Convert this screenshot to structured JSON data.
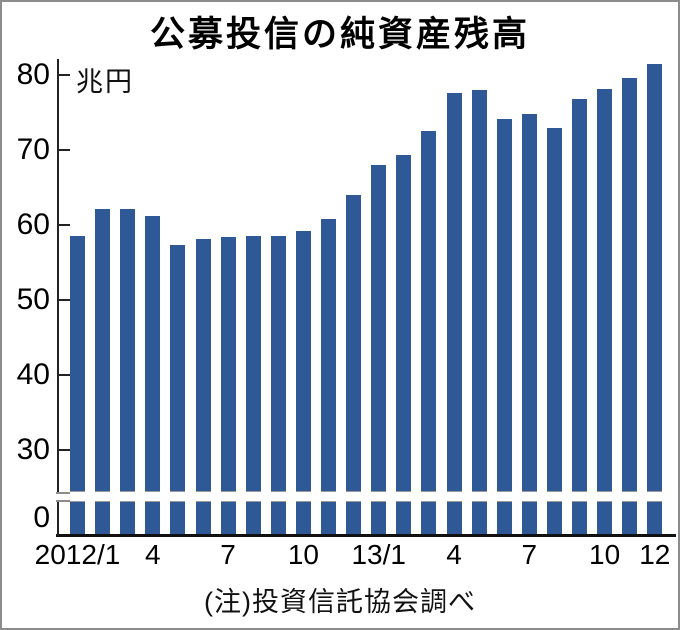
{
  "page": {
    "title": "公募投信の純資産残高",
    "note": "(注)投資信託協会調べ"
  },
  "chart_data": {
    "type": "bar",
    "title": "公募投信の純資産残高",
    "ylabel": "兆円",
    "unit_label": "兆円",
    "note": "(注)投資信託協会調べ",
    "categories": [
      "2012/1",
      "2012/2",
      "2012/3",
      "2012/4",
      "2012/5",
      "2012/6",
      "2012/7",
      "2012/8",
      "2012/9",
      "2012/10",
      "2012/11",
      "2012/12",
      "2013/1",
      "2013/2",
      "2013/3",
      "2013/4",
      "2013/5",
      "2013/6",
      "2013/7",
      "2013/8",
      "2013/9",
      "2013/10",
      "2013/11",
      "2013/12"
    ],
    "values": [
      58.6,
      62.2,
      62.1,
      61.2,
      57.3,
      58.2,
      58.4,
      58.5,
      58.5,
      59.2,
      60.8,
      64.0,
      68.0,
      69.4,
      72.6,
      77.6,
      78.0,
      74.1,
      74.8,
      72.9,
      76.8,
      78.1,
      79.6,
      81.5
    ],
    "y_ticks": [
      80,
      70,
      60,
      50,
      40,
      30
    ],
    "y_zero_label": "0",
    "x_tick_labels": [
      {
        "label": "2012/1",
        "bar_index": 0
      },
      {
        "label": "4",
        "bar_index": 3
      },
      {
        "label": "7",
        "bar_index": 6
      },
      {
        "label": "10",
        "bar_index": 9
      },
      {
        "label": "13/1",
        "bar_index": 12
      },
      {
        "label": "4",
        "bar_index": 15
      },
      {
        "label": "7",
        "bar_index": 18
      },
      {
        "label": "10",
        "bar_index": 21
      },
      {
        "label": "12",
        "bar_index": 23
      }
    ],
    "axis_break": true,
    "grid": false,
    "legend": "none",
    "colors": {
      "bar_fill": "#2F5896",
      "axis": "#222222",
      "break_line": "#8c8c8c",
      "text": "#000000"
    }
  }
}
